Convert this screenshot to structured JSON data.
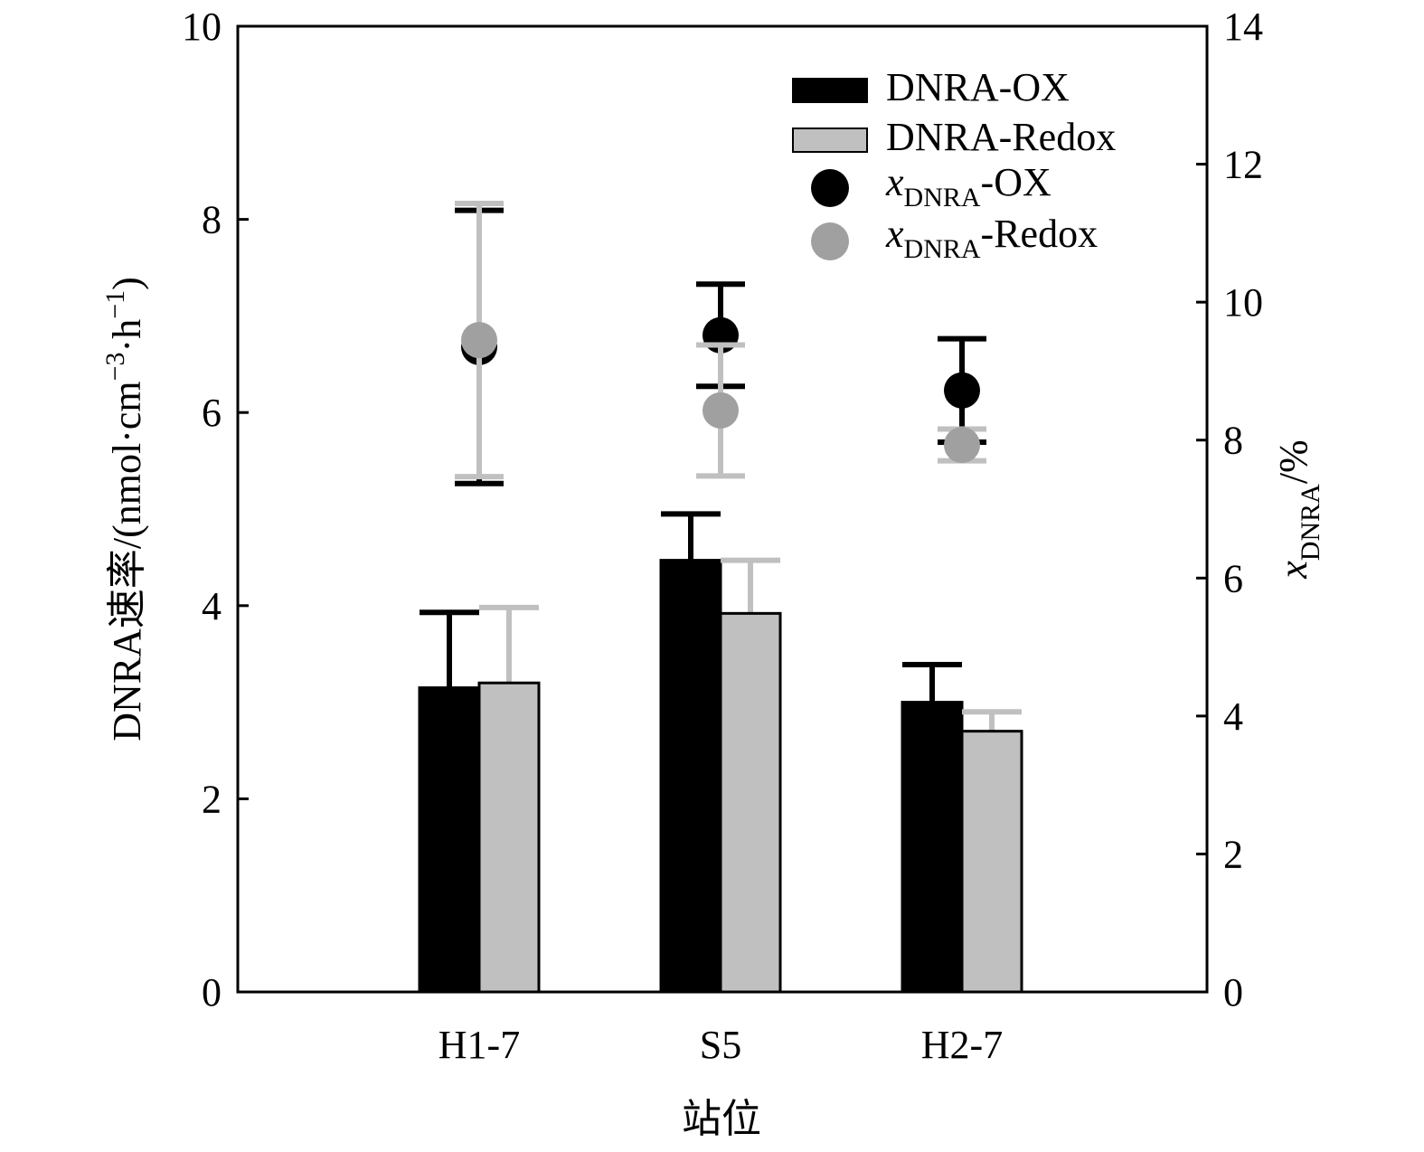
{
  "chart_data": {
    "type": "bar",
    "categories": [
      "H1-7",
      "S5",
      "H2-7"
    ],
    "xlabel": "站位",
    "ylabel_left": {
      "prefix": "DNRA速率/(nmol·cm",
      "sup1": "−3",
      "mid": "·h",
      "sup2": "−1",
      "suffix": ")"
    },
    "ylabel_right": {
      "var": "x",
      "sub": "DNRA",
      "suffix": "/%"
    },
    "ylim_left": [
      0,
      10
    ],
    "yticks_left": [
      "0",
      "2",
      "4",
      "6",
      "8",
      "10"
    ],
    "ylim_right": [
      0,
      14
    ],
    "yticks_right": [
      "0",
      "2",
      "4",
      "6",
      "8",
      "10",
      "12",
      "14"
    ],
    "grid": false,
    "legend_position": "top-right",
    "bar_series": [
      {
        "name": "DNRA-OX",
        "axis": "left",
        "fill": "#000000",
        "errcolor": "#000000",
        "values": [
          3.15,
          4.47,
          3.0
        ],
        "errors": [
          0.78,
          0.48,
          0.39
        ]
      },
      {
        "name": "DNRA-Redox",
        "axis": "left",
        "fill": "#c0c0c0",
        "errcolor": "#c0c0c0",
        "values": [
          3.2,
          3.92,
          2.7
        ],
        "errors": [
          0.78,
          0.55,
          0.2
        ]
      }
    ],
    "point_series": [
      {
        "legend_var": "x",
        "legend_sub": "DNRA",
        "legend_suffix": "-OX",
        "axis": "right",
        "color": "#000000",
        "errcolor": "#000000",
        "values": [
          9.35,
          9.52,
          8.72
        ],
        "errors": [
          1.98,
          0.74,
          0.75
        ]
      },
      {
        "legend_var": "x",
        "legend_sub": "DNRA",
        "legend_suffix": "-Redox",
        "axis": "right",
        "color": "#a0a0a0",
        "errcolor": "#c0c0c0",
        "values": [
          9.45,
          8.43,
          7.93
        ],
        "errors": [
          1.98,
          0.95,
          0.23
        ]
      }
    ]
  }
}
